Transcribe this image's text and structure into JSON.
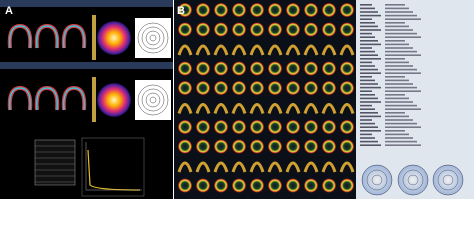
{
  "panels": {
    "a": {
      "label": "A"
    },
    "b": {
      "label": "B"
    }
  }
}
